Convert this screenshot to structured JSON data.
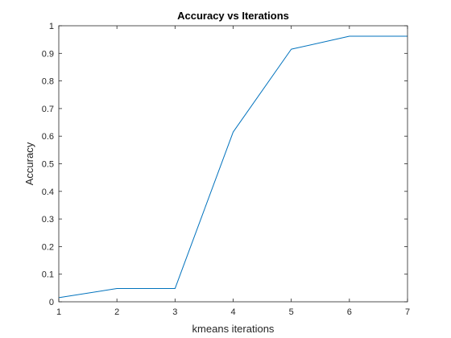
{
  "chart_data": {
    "type": "line",
    "title": "Accuracy vs Iterations",
    "xlabel": "kmeans iterations",
    "ylabel": "Accuracy",
    "xlim": [
      1,
      7
    ],
    "ylim": [
      0,
      1
    ],
    "x_ticks": [
      "1",
      "2",
      "3",
      "4",
      "5",
      "6",
      "7"
    ],
    "y_ticks": [
      "0",
      "0.1",
      "0.2",
      "0.3",
      "0.4",
      "0.5",
      "0.6",
      "0.7",
      "0.8",
      "0.9",
      "1"
    ],
    "grid": false,
    "series": [
      {
        "color": "#0072bd",
        "x": [
          1,
          2,
          3,
          4,
          5,
          6,
          7
        ],
        "y": [
          0.015,
          0.048,
          0.048,
          0.615,
          0.915,
          0.962,
          0.962
        ]
      }
    ]
  }
}
